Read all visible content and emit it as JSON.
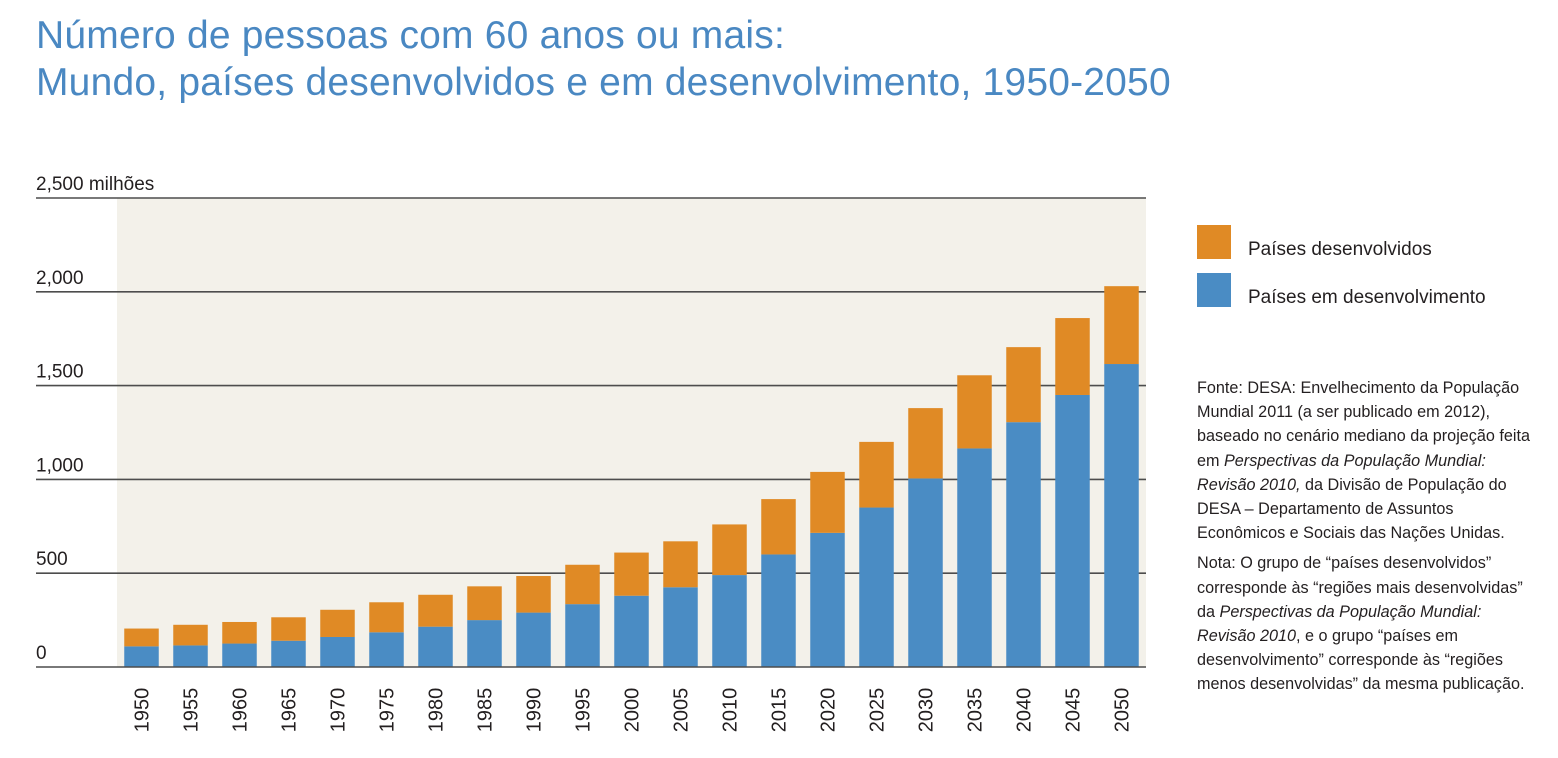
{
  "title": {
    "line1": "Número de pessoas com 60 anos ou mais:",
    "line2": "Mundo, países desenvolvidos e em desenvolvimento, 1950-2050"
  },
  "colors": {
    "title": "#4a88c2",
    "developed": "#e08a25",
    "developing": "#4a8cc4",
    "plot_bg": "#f3f1ea",
    "grid": "#4d4d4d"
  },
  "chart_data": {
    "type": "bar",
    "stacked": true,
    "title": "Número de pessoas com 60 anos ou mais: Mundo, países desenvolvidos e em desenvolvimento, 1950-2050",
    "ylabel": "milhões",
    "ylim": [
      0,
      2500
    ],
    "yticks": [
      0,
      500,
      1000,
      1500,
      2000,
      2500
    ],
    "ytick_labels": [
      "0",
      "500",
      "1,000",
      "1,500",
      "2,000",
      "2,500 milhões"
    ],
    "categories": [
      "1950",
      "1955",
      "1960",
      "1965",
      "1970",
      "1975",
      "1980",
      "1985",
      "1990",
      "1995",
      "2000",
      "2005",
      "2010",
      "2015",
      "2020",
      "2025",
      "2030",
      "2035",
      "2040",
      "2045",
      "2050"
    ],
    "series": [
      {
        "name": "Países em desenvolvimento",
        "color_key": "developing",
        "values": [
          110,
          115,
          125,
          140,
          160,
          185,
          215,
          250,
          290,
          335,
          380,
          425,
          490,
          600,
          715,
          850,
          1005,
          1165,
          1305,
          1450,
          1615
        ]
      },
      {
        "name": "Países desenvolvidos",
        "color_key": "developed",
        "values": [
          95,
          110,
          115,
          125,
          145,
          160,
          170,
          180,
          195,
          210,
          230,
          245,
          270,
          295,
          325,
          350,
          375,
          390,
          400,
          410,
          415
        ]
      }
    ],
    "legend_position": "right"
  },
  "legend": {
    "developed_label": "Países desenvolvidos",
    "developing_label": "Países em desenvolvimento"
  },
  "notes": {
    "source_a": "Fonte: DESA: Envelhecimento da População Mundial 2011 (a ser publicado em 2012), baseado no cenário mediano da projeção feita em ",
    "source_italic": "Perspectivas da População Mundial: Revisão 2010,",
    "source_b": " da Divisão de População do DESA – Departamento de Assuntos Econômicos e Sociais das Nações Unidas.",
    "note_a": "Nota: O grupo de “países desenvolvidos” corresponde às “regiões mais desenvolvidas” da ",
    "note_italic": "Perspectivas da População Mundial: Revisão 2010",
    "note_b": ", e o grupo “países em desenvolvimento” corresponde às “regiões menos desenvolvidas” da mesma publicação."
  }
}
